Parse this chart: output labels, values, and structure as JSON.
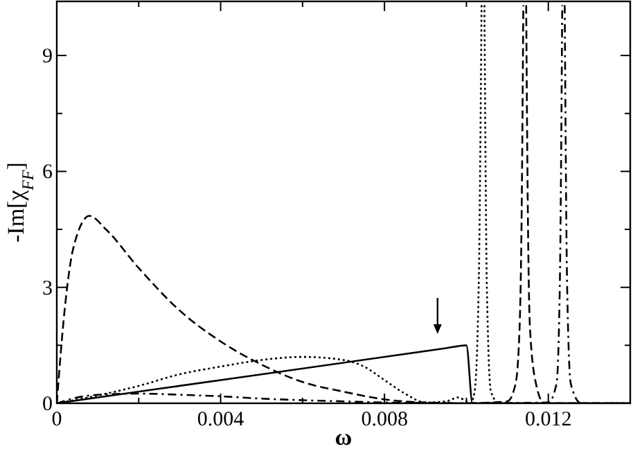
{
  "chart_data": {
    "type": "line",
    "xlabel": "ω",
    "ylabel": "-Im[χ$_{FF}$]",
    "xlim": [
      0,
      0.014
    ],
    "ylim": [
      0,
      10.4
    ],
    "xticks": [
      0,
      {
        "value": 0.002,
        "label": null
      },
      {
        "value": 0.004,
        "label": "0.004"
      },
      {
        "value": 0.006,
        "label": null
      },
      {
        "value": 0.008,
        "label": "0.008"
      },
      {
        "value": 0.01,
        "label": null
      },
      {
        "value": 0.012,
        "label": "0.012"
      }
    ],
    "yticks": [
      0,
      {
        "value": 1.5,
        "label": null
      },
      3,
      {
        "value": 4.5,
        "label": null
      },
      6,
      {
        "value": 7.5,
        "label": null
      },
      9
    ],
    "grid": false,
    "series": [
      {
        "color": "#000000",
        "line_style": "solid",
        "x": [
          0,
          0.005,
          0.0095,
          0.01,
          0.01015,
          0.014
        ],
        "values": [
          0,
          0.75,
          1.425,
          1.5,
          0,
          0
        ]
      },
      {
        "color": "#000000",
        "line_style": "dashed",
        "x": [
          0,
          0.0002,
          0.0004,
          0.0008,
          0.0012,
          0.002,
          0.003,
          0.004,
          0.005,
          0.006,
          0.007,
          0.008,
          0.009,
          0.01,
          0.011,
          0.0112,
          0.0113,
          0.01135,
          0.01139,
          0.011425,
          0.01146,
          0.0115,
          0.01155,
          0.0117,
          0.0119,
          0.014
        ],
        "values": [
          0,
          2.5,
          4.0,
          4.85,
          4.5,
          3.5,
          2.4,
          1.6,
          1.0,
          0.55,
          0.3,
          0.1,
          0.02,
          0,
          0.05,
          0.5,
          2,
          5,
          10.3,
          null,
          10.3,
          5,
          2,
          0.5,
          0,
          0
        ]
      },
      {
        "color": "#000000",
        "line_style": "dotted",
        "x": [
          0,
          0.001,
          0.002,
          0.003,
          0.004,
          0.005,
          0.006,
          0.007,
          0.0075,
          0.008,
          0.0085,
          0.009,
          0.0095,
          0.0098,
          0.01,
          0.0101,
          0.0102,
          0.0103,
          0.01037,
          0.010405,
          0.01044,
          0.0105,
          0.0106,
          0.0108,
          0.014
        ],
        "values": [
          0,
          0.2,
          0.45,
          0.75,
          0.95,
          1.12,
          1.2,
          1.12,
          0.95,
          0.6,
          0.25,
          0.02,
          0.05,
          0.15,
          0.05,
          0,
          0.3,
          3,
          10.3,
          null,
          10.3,
          3,
          0.3,
          0,
          0
        ]
      },
      {
        "color": "#000000",
        "line_style": "dashdot",
        "x": [
          0,
          0.0005,
          0.001,
          0.002,
          0.003,
          0.004,
          0.005,
          0.006,
          0.007,
          0.008,
          0.009,
          0.01,
          0.012,
          0.0122,
          0.01228,
          0.01234,
          0.01237,
          0.0124,
          0.01246,
          0.01255,
          0.0128,
          0.014
        ],
        "values": [
          0,
          0.15,
          0.22,
          0.25,
          0.22,
          0.18,
          0.12,
          0.08,
          0.05,
          0.02,
          0.01,
          0,
          0.02,
          0.5,
          3,
          10.3,
          null,
          10.3,
          3,
          0.5,
          0,
          0
        ]
      }
    ]
  }
}
